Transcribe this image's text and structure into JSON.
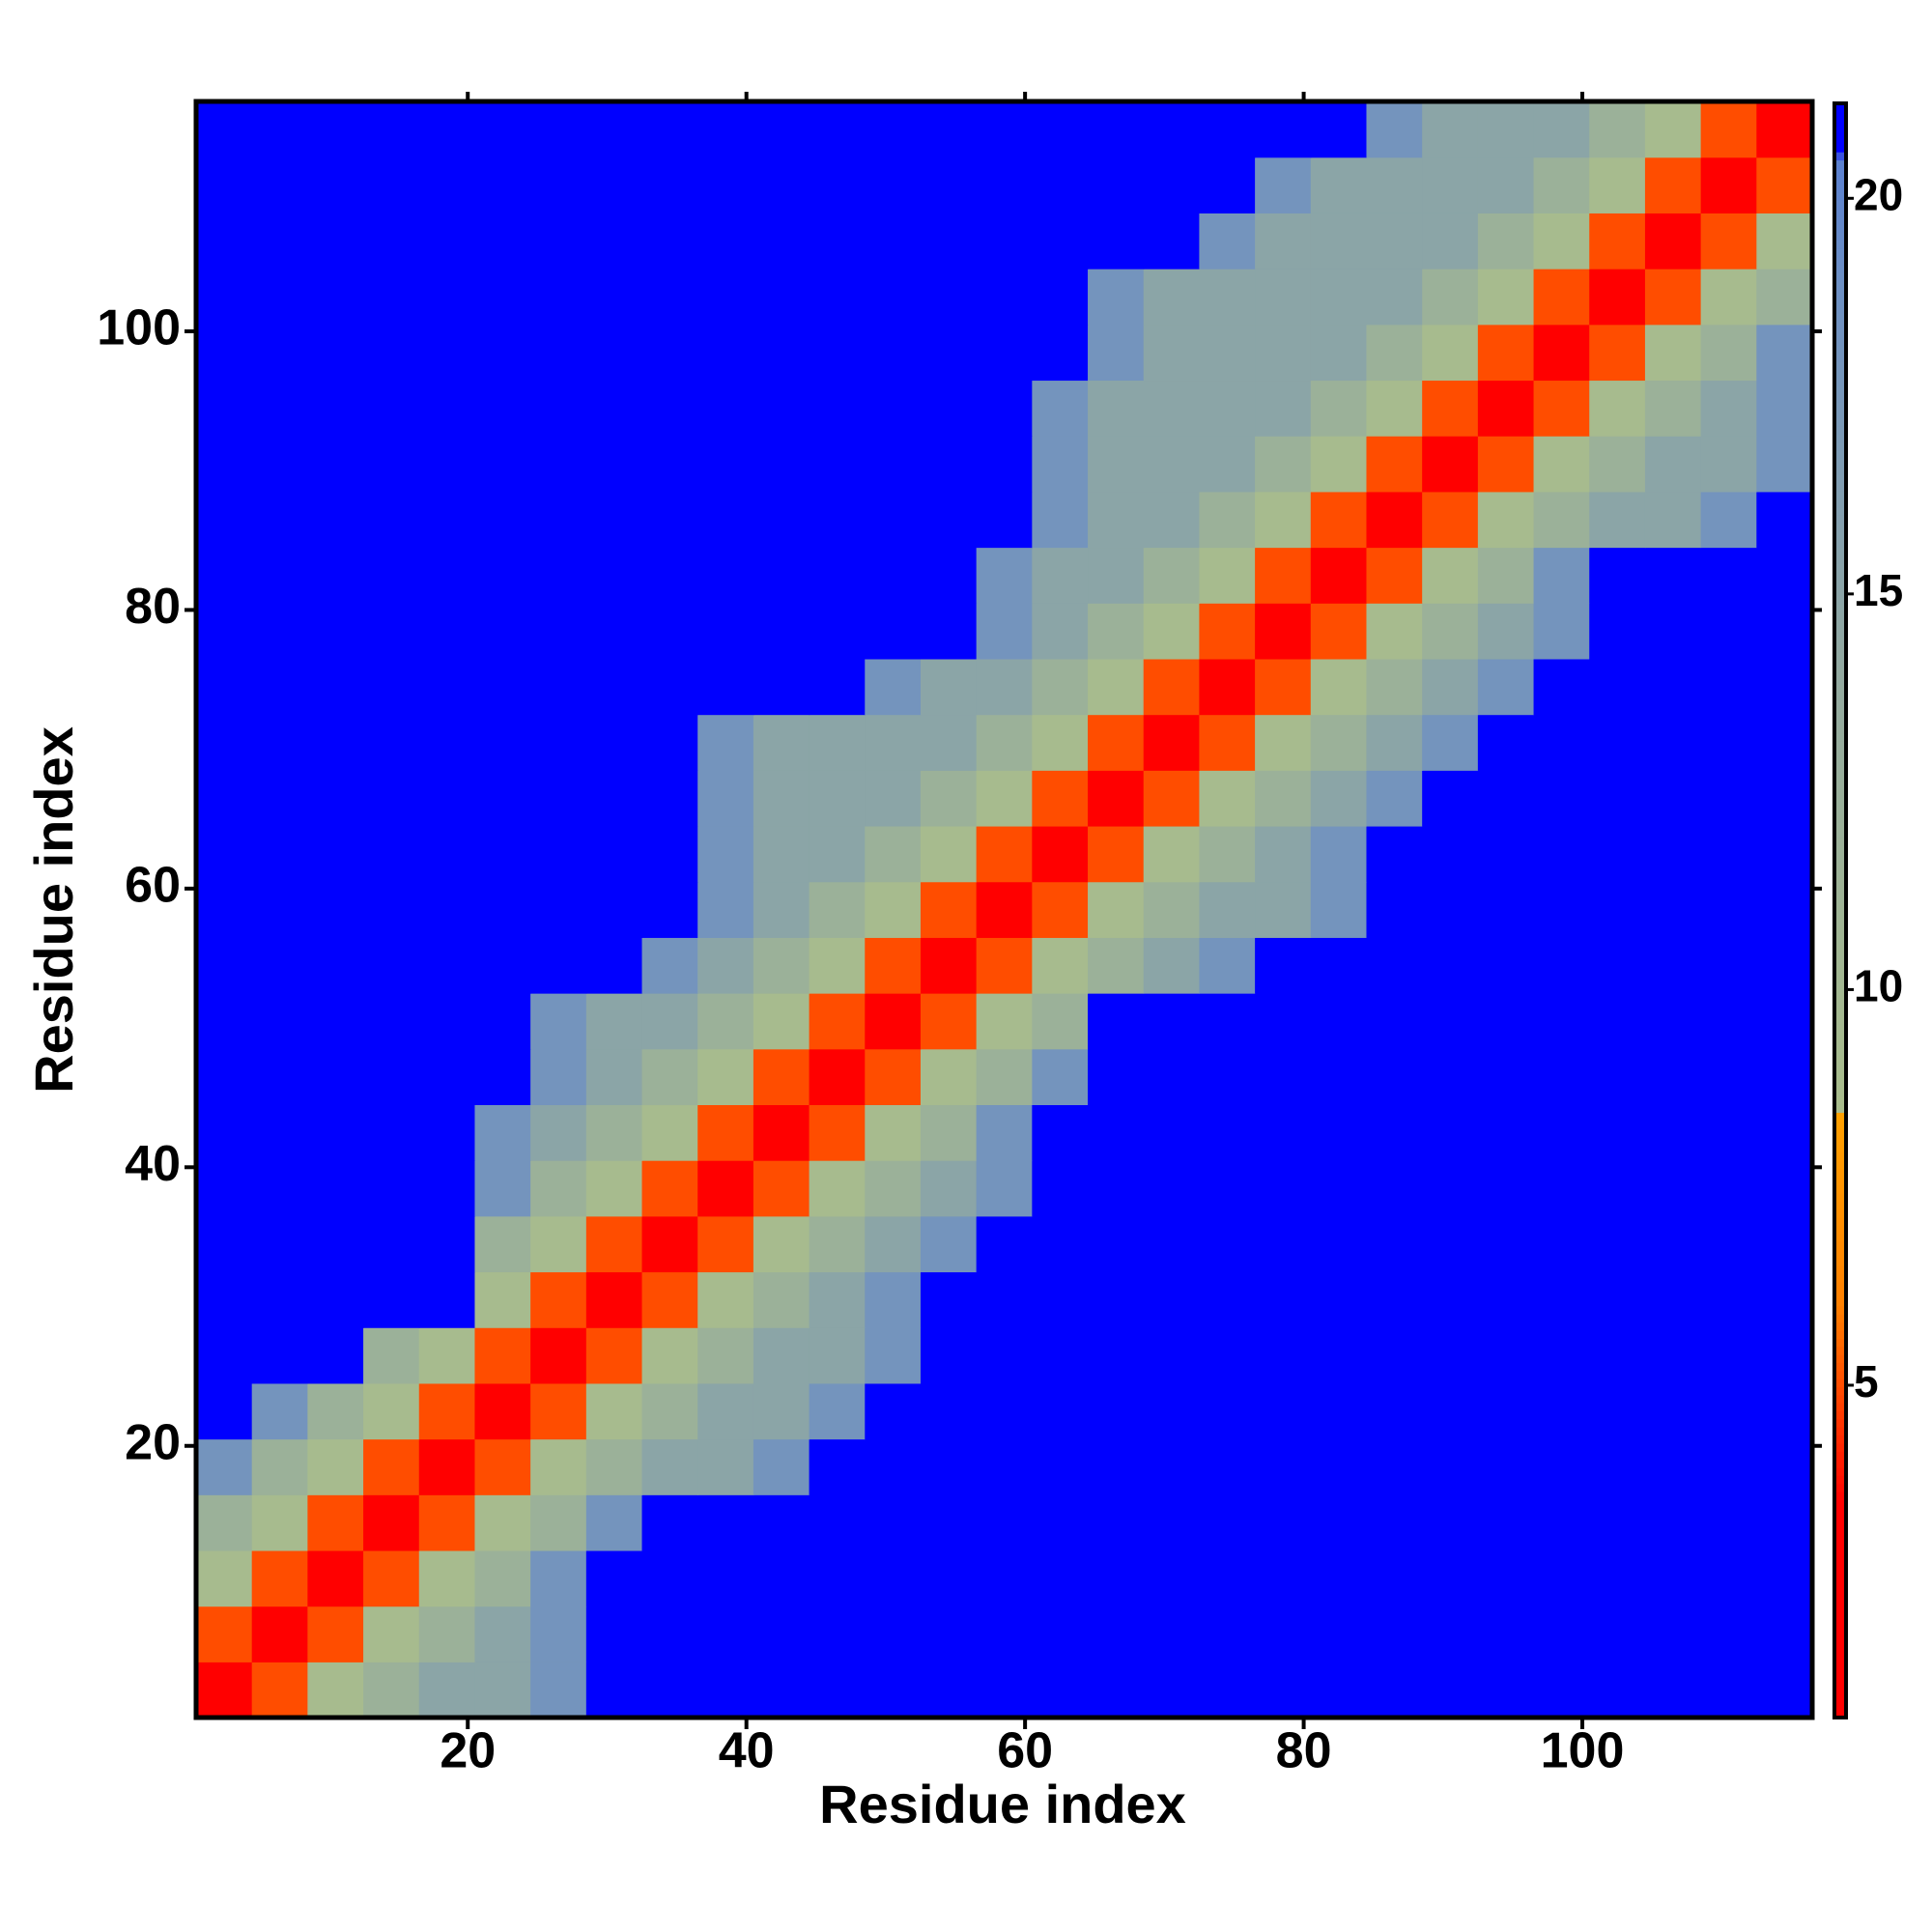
{
  "chart_data": {
    "type": "heatmap",
    "x_label": "Residue index",
    "y_label": "Residue index",
    "xlim": [
      0.5,
      116.5
    ],
    "ylim": [
      0.5,
      116.5
    ],
    "xticks": [
      20,
      40,
      60,
      80,
      100
    ],
    "yticks": [
      20,
      40,
      60,
      80,
      100
    ],
    "zlim": [
      0.8,
      21.2
    ],
    "zticks": [
      5,
      10,
      15,
      20
    ],
    "colorscale": [
      [
        0.8,
        "#ff0000"
      ],
      [
        3.5,
        "#ff0000"
      ],
      [
        6,
        "#ff8000"
      ],
      [
        8.4,
        "#ffa000"
      ],
      [
        8.5,
        "#a9bd8c"
      ],
      [
        14,
        "#93aaa0"
      ],
      [
        19,
        "#6c8fc4"
      ],
      [
        20.5,
        "#5b80d0"
      ],
      [
        20.6,
        "#0000ff"
      ],
      [
        21.2,
        "#0000ff"
      ]
    ],
    "x": [
      2.5,
      6.5,
      10.5,
      14.5,
      18.5,
      22.5,
      26.5,
      30.5,
      34.5,
      38.5,
      42.5,
      46.5,
      50.5,
      54.5,
      58.5,
      62.5,
      66.5,
      70.5,
      74.5,
      78.5,
      82.5,
      86.5,
      90.5,
      94.5,
      98.5,
      102.5,
      106.5,
      110.5,
      114.5
    ],
    "y": [
      2.5,
      6.5,
      10.5,
      14.5,
      18.5,
      22.5,
      26.5,
      30.5,
      34.5,
      38.5,
      42.5,
      46.5,
      50.5,
      54.5,
      58.5,
      62.5,
      66.5,
      70.5,
      74.5,
      78.5,
      82.5,
      86.5,
      90.5,
      94.5,
      98.5,
      102.5,
      106.5,
      110.5,
      114.5
    ],
    "z": [
      [
        2,
        5,
        9,
        12,
        15,
        15,
        18,
        21,
        21,
        21,
        21,
        21,
        21,
        21,
        21,
        21,
        21,
        21,
        21,
        21,
        21,
        21,
        21,
        21,
        21,
        21,
        21,
        21,
        21
      ],
      [
        5,
        2,
        5,
        9,
        12,
        15,
        18,
        21,
        21,
        21,
        21,
        21,
        21,
        21,
        21,
        21,
        21,
        21,
        21,
        21,
        21,
        21,
        21,
        21,
        21,
        21,
        21,
        21,
        21
      ],
      [
        9,
        5,
        2,
        5,
        9,
        12,
        18,
        21,
        21,
        21,
        21,
        21,
        21,
        21,
        21,
        21,
        21,
        21,
        21,
        21,
        21,
        21,
        21,
        21,
        21,
        21,
        21,
        21,
        21
      ],
      [
        12,
        9,
        5,
        2,
        5,
        9,
        12,
        18,
        21,
        21,
        21,
        21,
        21,
        21,
        21,
        21,
        21,
        21,
        21,
        21,
        21,
        21,
        21,
        21,
        21,
        21,
        21,
        21,
        21
      ],
      [
        18,
        12,
        9,
        5,
        2,
        5,
        9,
        12,
        15,
        15,
        18,
        21,
        21,
        21,
        21,
        21,
        21,
        21,
        21,
        21,
        21,
        21,
        21,
        21,
        21,
        21,
        21,
        21,
        21
      ],
      [
        21,
        18,
        12,
        9,
        5,
        2,
        5,
        9,
        12,
        15,
        15,
        18,
        21,
        21,
        21,
        21,
        21,
        21,
        21,
        21,
        21,
        21,
        21,
        21,
        21,
        21,
        21,
        21,
        21
      ],
      [
        21,
        21,
        21,
        12,
        9,
        5,
        2,
        5,
        9,
        12,
        15,
        15,
        18,
        21,
        21,
        21,
        21,
        21,
        21,
        21,
        21,
        21,
        21,
        21,
        21,
        21,
        21,
        21,
        21
      ],
      [
        21,
        21,
        21,
        21,
        21,
        9,
        5,
        2,
        5,
        9,
        12,
        15,
        18,
        21,
        21,
        21,
        21,
        21,
        21,
        21,
        21,
        21,
        21,
        21,
        21,
        21,
        21,
        21,
        21
      ],
      [
        21,
        21,
        21,
        21,
        21,
        12,
        9,
        5,
        2,
        5,
        9,
        12,
        15,
        18,
        21,
        21,
        21,
        21,
        21,
        21,
        21,
        21,
        21,
        21,
        21,
        21,
        21,
        21,
        21
      ],
      [
        21,
        21,
        21,
        21,
        21,
        18,
        12,
        9,
        5,
        2,
        5,
        9,
        12,
        15,
        18,
        21,
        21,
        21,
        21,
        21,
        21,
        21,
        21,
        21,
        21,
        21,
        21,
        21,
        21
      ],
      [
        21,
        21,
        21,
        21,
        21,
        18,
        15,
        12,
        9,
        5,
        2,
        5,
        9,
        12,
        18,
        21,
        21,
        21,
        21,
        21,
        21,
        21,
        21,
        21,
        21,
        21,
        21,
        21,
        21
      ],
      [
        21,
        21,
        21,
        21,
        21,
        21,
        18,
        15,
        12,
        9,
        5,
        2,
        5,
        9,
        12,
        18,
        21,
        21,
        21,
        21,
        21,
        21,
        21,
        21,
        21,
        21,
        21,
        21,
        21
      ],
      [
        21,
        21,
        21,
        21,
        21,
        21,
        18,
        15,
        15,
        12,
        9,
        5,
        2,
        5,
        9,
        12,
        21,
        21,
        21,
        21,
        21,
        21,
        21,
        21,
        21,
        21,
        21,
        21,
        21
      ],
      [
        21,
        21,
        21,
        21,
        21,
        21,
        21,
        21,
        18,
        15,
        12,
        9,
        5,
        2,
        5,
        9,
        12,
        15,
        18,
        21,
        21,
        21,
        21,
        21,
        21,
        21,
        21,
        21,
        21
      ],
      [
        21,
        21,
        21,
        21,
        21,
        21,
        21,
        21,
        21,
        18,
        15,
        12,
        9,
        5,
        2,
        5,
        9,
        12,
        15,
        15,
        18,
        21,
        21,
        21,
        21,
        21,
        21,
        21,
        21
      ],
      [
        21,
        21,
        21,
        21,
        21,
        21,
        21,
        21,
        21,
        18,
        15,
        15,
        12,
        9,
        5,
        2,
        5,
        9,
        12,
        15,
        18,
        21,
        21,
        21,
        21,
        21,
        21,
        21,
        21
      ],
      [
        21,
        21,
        21,
        21,
        21,
        21,
        21,
        21,
        21,
        18,
        15,
        15,
        15,
        12,
        9,
        5,
        2,
        5,
        9,
        12,
        15,
        18,
        21,
        21,
        21,
        21,
        21,
        21,
        21
      ],
      [
        21,
        21,
        21,
        21,
        21,
        21,
        21,
        21,
        21,
        18,
        15,
        15,
        15,
        15,
        12,
        9,
        5,
        2,
        5,
        9,
        12,
        15,
        18,
        21,
        21,
        21,
        21,
        21,
        21
      ],
      [
        21,
        21,
        21,
        21,
        21,
        21,
        21,
        21,
        21,
        21,
        21,
        21,
        18,
        15,
        15,
        12,
        9,
        5,
        2,
        5,
        9,
        12,
        15,
        18,
        21,
        21,
        21,
        21,
        21
      ],
      [
        21,
        21,
        21,
        21,
        21,
        21,
        21,
        21,
        21,
        21,
        21,
        21,
        21,
        21,
        18,
        15,
        12,
        9,
        5,
        2,
        5,
        9,
        12,
        15,
        18,
        21,
        21,
        21,
        21
      ],
      [
        21,
        21,
        21,
        21,
        21,
        21,
        21,
        21,
        21,
        21,
        21,
        21,
        21,
        21,
        18,
        15,
        15,
        12,
        9,
        5,
        2,
        5,
        9,
        12,
        18,
        21,
        21,
        21,
        21
      ],
      [
        21,
        21,
        21,
        21,
        21,
        21,
        21,
        21,
        21,
        21,
        21,
        21,
        21,
        21,
        21,
        18,
        15,
        15,
        12,
        9,
        5,
        2,
        5,
        9,
        12,
        15,
        15,
        18,
        21
      ],
      [
        21,
        21,
        21,
        21,
        21,
        21,
        21,
        21,
        21,
        21,
        21,
        21,
        21,
        21,
        21,
        18,
        15,
        15,
        15,
        12,
        9,
        5,
        2,
        5,
        9,
        12,
        15,
        15,
        18
      ],
      [
        21,
        21,
        21,
        21,
        21,
        21,
        21,
        21,
        21,
        21,
        21,
        21,
        21,
        21,
        21,
        18,
        15,
        15,
        15,
        15,
        12,
        9,
        5,
        2,
        5,
        9,
        12,
        15,
        18
      ],
      [
        21,
        21,
        21,
        21,
        21,
        21,
        21,
        21,
        21,
        21,
        21,
        21,
        21,
        21,
        21,
        21,
        18,
        15,
        15,
        15,
        15,
        12,
        9,
        5,
        2,
        5,
        9,
        12,
        18
      ],
      [
        21,
        21,
        21,
        21,
        21,
        21,
        21,
        21,
        21,
        21,
        21,
        21,
        21,
        21,
        21,
        21,
        18,
        15,
        15,
        15,
        15,
        15,
        12,
        9,
        5,
        2,
        5,
        9,
        12
      ],
      [
        21,
        21,
        21,
        21,
        21,
        21,
        21,
        21,
        21,
        21,
        21,
        21,
        21,
        21,
        21,
        21,
        21,
        21,
        18,
        15,
        15,
        15,
        15,
        12,
        9,
        5,
        2,
        5,
        9
      ],
      [
        21,
        21,
        21,
        21,
        21,
        21,
        21,
        21,
        21,
        21,
        21,
        21,
        21,
        21,
        21,
        21,
        21,
        21,
        21,
        18,
        15,
        15,
        15,
        15,
        12,
        9,
        5,
        2,
        5
      ],
      [
        21,
        21,
        21,
        21,
        21,
        21,
        21,
        21,
        21,
        21,
        21,
        21,
        21,
        21,
        21,
        21,
        21,
        21,
        21,
        21,
        21,
        18,
        15,
        15,
        15,
        12,
        9,
        5,
        2
      ]
    ]
  }
}
